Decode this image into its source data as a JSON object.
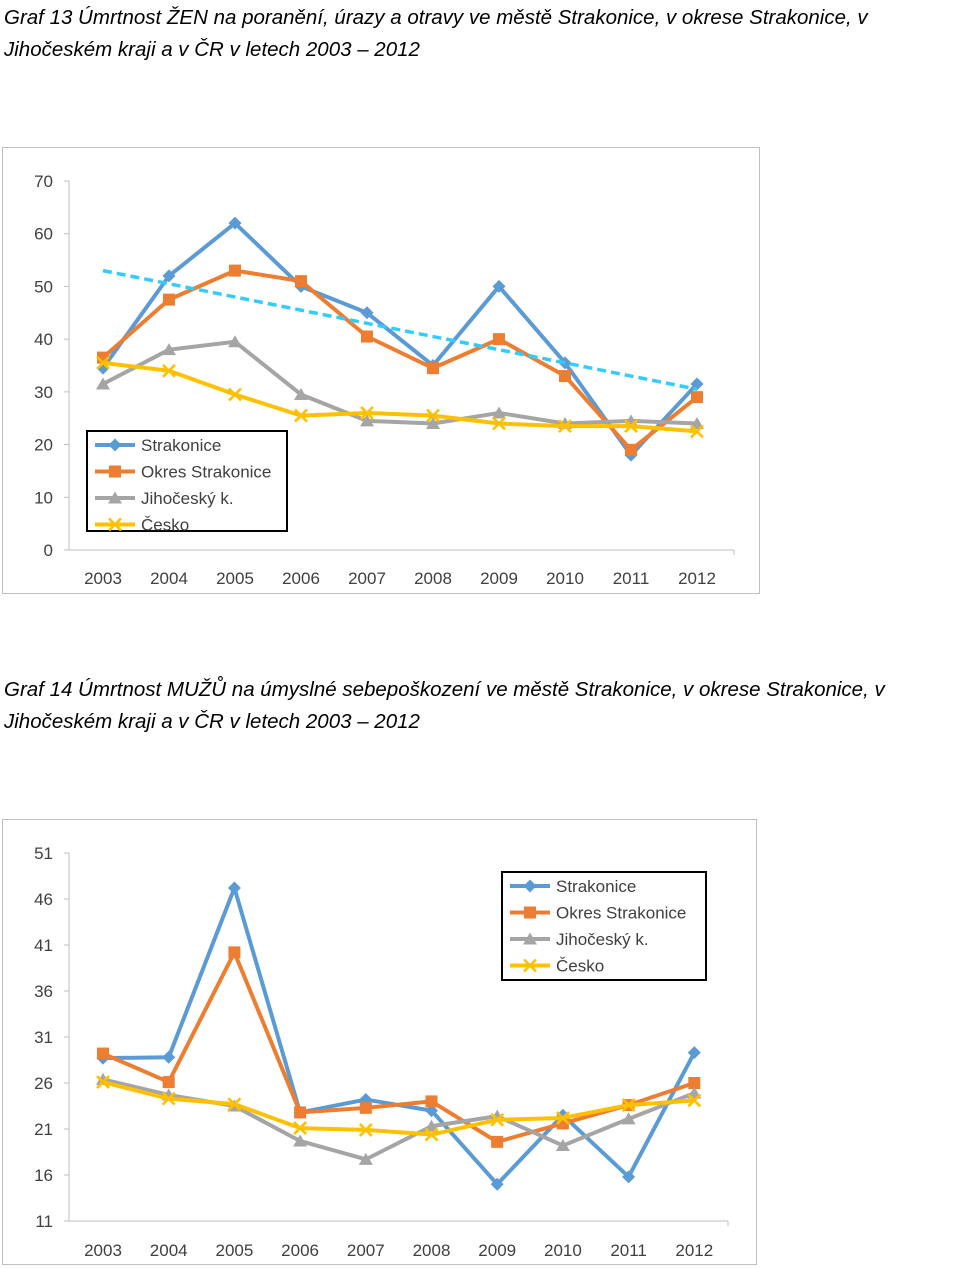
{
  "captions": {
    "chart1": "Graf 13 Úmrtnost ŽEN na poranění, úrazy a otravy ve městě Strakonice, v okrese Strakonice, v Jihočeském kraji a v ČR v letech 2003 – 2012",
    "chart2": "Graf 14 Úmrtnost MUŽŮ na úmyslné sebepoškození ve městě Strakonice, v okrese Strakonice, v Jihočeském kraji a v ČR v letech 2003 – 2012"
  },
  "chart_data": [
    {
      "type": "line",
      "categories": [
        "2003",
        "2004",
        "2005",
        "2006",
        "2007",
        "2008",
        "2009",
        "2010",
        "2011",
        "2012"
      ],
      "ylim": [
        0,
        70
      ],
      "yticks": [
        "0",
        "10",
        "20",
        "30",
        "40",
        "50",
        "60",
        "70"
      ],
      "grid": false,
      "legend_position": "bottom-left",
      "series": [
        {
          "name": "Strakonice",
          "color": "#5b9bd5",
          "marker": "diamond",
          "values": [
            34.5,
            52,
            62,
            50,
            45,
            35,
            50,
            35.5,
            18,
            31.5
          ]
        },
        {
          "name": "Okres Strakonice",
          "color": "#ed7d31",
          "marker": "square",
          "values": [
            36.5,
            47.5,
            53,
            51,
            40.5,
            34.5,
            40,
            33,
            19,
            29
          ]
        },
        {
          "name": "Jihočeský k.",
          "color": "#a5a5a5",
          "marker": "triangle",
          "values": [
            31.5,
            38,
            39.5,
            29.5,
            24.5,
            24,
            26,
            24,
            24.5,
            24
          ]
        },
        {
          "name": "Česko",
          "color": "#ffc000",
          "marker": "x",
          "values": [
            35.5,
            34,
            29.5,
            25.5,
            26,
            25.5,
            24,
            23.5,
            23.5,
            22.5
          ]
        }
      ],
      "trendline": {
        "series": "Strakonice",
        "color": "#33ccff",
        "style": "dashed",
        "start": 53,
        "end": 30.5
      }
    },
    {
      "type": "line",
      "categories": [
        "2003",
        "2004",
        "2005",
        "2006",
        "2007",
        "2008",
        "2009",
        "2010",
        "2011",
        "2012"
      ],
      "ylim": [
        11,
        51
      ],
      "yticks": [
        "11",
        "16",
        "21",
        "26",
        "31",
        "36",
        "41",
        "46",
        "51"
      ],
      "grid": false,
      "legend_position": "top-right",
      "series": [
        {
          "name": "Strakonice",
          "color": "#5b9bd5",
          "marker": "diamond",
          "values": [
            28.7,
            28.8,
            47.2,
            22.8,
            24.2,
            23,
            15,
            22.5,
            15.8,
            29.3
          ]
        },
        {
          "name": "Okres Strakonice",
          "color": "#ed7d31",
          "marker": "square",
          "values": [
            29.2,
            26.1,
            40.2,
            22.8,
            23.3,
            24,
            19.6,
            21.6,
            23.6,
            26
          ]
        },
        {
          "name": "Jihočeský k.",
          "color": "#a5a5a5",
          "marker": "triangle",
          "values": [
            26.4,
            24.7,
            23.5,
            19.7,
            17.7,
            21.3,
            22.4,
            19.2,
            22.1,
            24.9
          ]
        },
        {
          "name": "Česko",
          "color": "#ffc000",
          "marker": "x",
          "values": [
            26.1,
            24.3,
            23.7,
            21.1,
            20.9,
            20.4,
            22,
            22.2,
            23.6,
            24.1
          ]
        }
      ]
    }
  ]
}
